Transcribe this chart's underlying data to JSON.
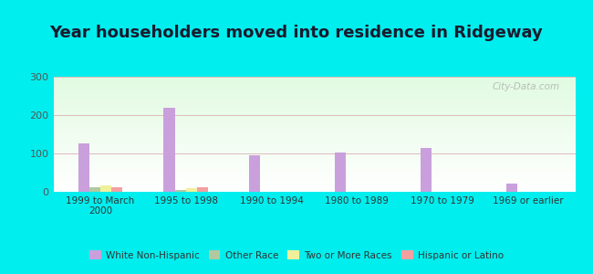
{
  "title": "Year householders moved into residence in Ridgeway",
  "categories": [
    "1999 to March\n2000",
    "1995 to 1998",
    "1990 to 1994",
    "1980 to 1989",
    "1970 to 1979",
    "1969 or earlier"
  ],
  "series": {
    "White Non-Hispanic": [
      127,
      218,
      95,
      103,
      115,
      22
    ],
    "Other Race": [
      13,
      5,
      0,
      0,
      0,
      0
    ],
    "Two or More Races": [
      17,
      10,
      0,
      0,
      0,
      0
    ],
    "Hispanic or Latino": [
      12,
      12,
      0,
      0,
      0,
      0
    ]
  },
  "colors": {
    "White Non-Hispanic": "#c9a0dc",
    "Other Race": "#b2c9a0",
    "Two or More Races": "#f0f09a",
    "Hispanic or Latino": "#f4a0a0"
  },
  "ylim": [
    0,
    300
  ],
  "yticks": [
    0,
    100,
    200,
    300
  ],
  "outer_bg": "#00eeee",
  "title_fontsize": 13,
  "watermark": "City-Data.com"
}
